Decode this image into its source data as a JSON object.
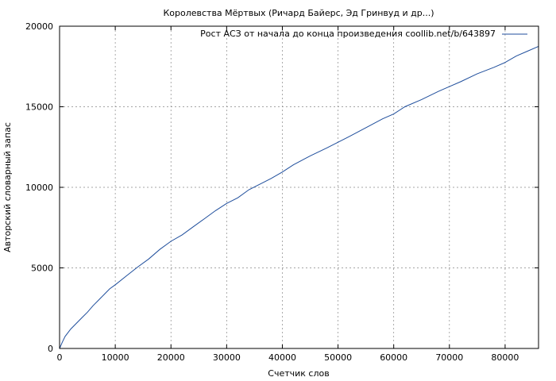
{
  "chart_data": {
    "type": "line",
    "title": "Королевства Мёртвых (Ричард Байерс, Эд Гринвуд и др...)",
    "xlabel": "Счетчик слов",
    "ylabel": "Авторский словарный запас",
    "xlim": [
      0,
      86000
    ],
    "ylim": [
      0,
      20000
    ],
    "xticks": [
      0,
      10000,
      20000,
      30000,
      40000,
      50000,
      60000,
      70000,
      80000
    ],
    "xtick_labels": [
      "0",
      "10000",
      "20000",
      "30000",
      "40000",
      "50000",
      "60000",
      "70000",
      "80000"
    ],
    "yticks": [
      0,
      5000,
      10000,
      15000,
      20000
    ],
    "ytick_labels": [
      "0",
      "5000",
      "10000",
      "15000",
      "20000"
    ],
    "grid": true,
    "legend_position": "top-right",
    "series": [
      {
        "name": "Рост АСЗ от начала до конца произведения coollib.net/b/643897",
        "color": "#1f4e9c",
        "x": [
          0,
          500,
          1000,
          2000,
          3000,
          4000,
          5000,
          6000,
          7000,
          8000,
          9000,
          10000,
          12000,
          14000,
          16000,
          18000,
          20000,
          22000,
          24000,
          26000,
          28000,
          30000,
          32000,
          34000,
          36000,
          38000,
          40000,
          42000,
          45000,
          48000,
          50000,
          52000,
          55000,
          58000,
          60000,
          62000,
          65000,
          68000,
          70000,
          72000,
          75000,
          78000,
          80000,
          82000,
          84000,
          86000
        ],
        "y": [
          0,
          400,
          750,
          1200,
          1550,
          1900,
          2250,
          2650,
          3000,
          3350,
          3700,
          3950,
          4500,
          5050,
          5550,
          6150,
          6650,
          7050,
          7550,
          8050,
          8550,
          9000,
          9350,
          9850,
          10200,
          10550,
          10950,
          11400,
          11950,
          12450,
          12800,
          13150,
          13700,
          14250,
          14550,
          15000,
          15450,
          15950,
          16250,
          16550,
          17050,
          17450,
          17750,
          18150,
          18450,
          18750
        ]
      }
    ]
  }
}
